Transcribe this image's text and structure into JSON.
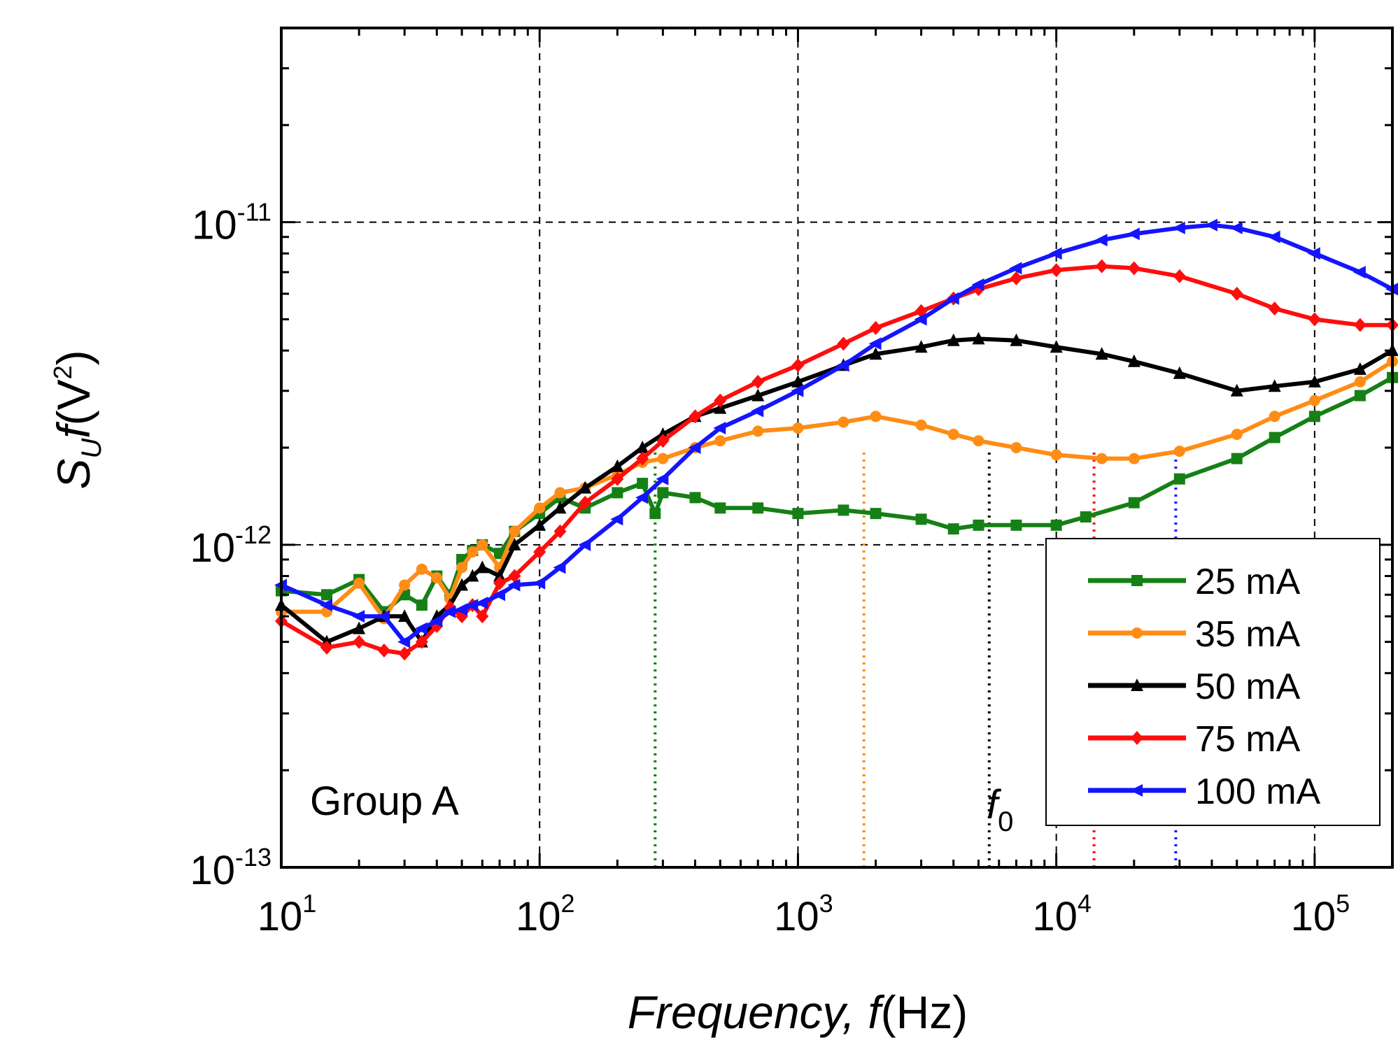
{
  "chart_data": {
    "type": "line",
    "xscale": "log",
    "yscale": "log",
    "xlim": [
      10,
      200000
    ],
    "ylim": [
      1e-13,
      4e-11
    ],
    "grid": true,
    "legend_position": "bottom-right",
    "xlabel": {
      "prefix": "Frequency, ",
      "var": "f",
      "unit": "(Hz)"
    },
    "ylabel": {
      "S": "S",
      "sub": "U",
      "var": "f",
      "open": "(V",
      "sup": "2",
      "close": ")"
    },
    "x_ticks": [
      {
        "base": "10",
        "exp": "1",
        "value": 10
      },
      {
        "base": "10",
        "exp": "2",
        "value": 100
      },
      {
        "base": "10",
        "exp": "3",
        "value": 1000
      },
      {
        "base": "10",
        "exp": "4",
        "value": 10000
      },
      {
        "base": "10",
        "exp": "5",
        "value": 100000
      }
    ],
    "y_ticks": [
      {
        "base": "10",
        "exp": "-13",
        "value": 1e-13
      },
      {
        "base": "10",
        "exp": "-12",
        "value": 1e-12
      },
      {
        "base": "10",
        "exp": "-11",
        "value": 1e-11
      }
    ],
    "annotations": {
      "group": "Group A",
      "f0_var": "f",
      "f0_sub": "0"
    },
    "series": [
      {
        "name": "25 mA",
        "color": "#158015",
        "marker": "square",
        "f0": 280,
        "x": [
          10,
          15,
          20,
          25,
          30,
          35,
          40,
          45,
          50,
          55,
          60,
          70,
          80,
          100,
          120,
          150,
          200,
          250,
          280,
          300,
          400,
          500,
          700,
          1000,
          1500,
          2000,
          3000,
          4000,
          5000,
          7000,
          10000,
          13000,
          20000,
          30000,
          50000,
          70000,
          100000,
          150000,
          200000
        ],
        "y": [
          7.2e-13,
          7e-13,
          7.8e-13,
          6.2e-13,
          7e-13,
          6.5e-13,
          8e-13,
          7e-13,
          9e-13,
          9.6e-13,
          1e-12,
          9.4e-13,
          1.1e-12,
          1.25e-12,
          1.4e-12,
          1.3e-12,
          1.45e-12,
          1.55e-12,
          1.25e-12,
          1.45e-12,
          1.4e-12,
          1.3e-12,
          1.3e-12,
          1.25e-12,
          1.28e-12,
          1.25e-12,
          1.2e-12,
          1.12e-12,
          1.15e-12,
          1.15e-12,
          1.15e-12,
          1.22e-12,
          1.35e-12,
          1.6e-12,
          1.85e-12,
          2.15e-12,
          2.5e-12,
          2.9e-12,
          3.3e-12
        ]
      },
      {
        "name": "35 mA",
        "color": "#ff8c15",
        "marker": "circle",
        "f0": 1800,
        "x": [
          10,
          15,
          20,
          25,
          30,
          35,
          40,
          45,
          50,
          55,
          60,
          70,
          80,
          100,
          120,
          150,
          200,
          250,
          300,
          400,
          500,
          700,
          1000,
          1500,
          2000,
          3000,
          4000,
          5000,
          7000,
          10000,
          15000,
          20000,
          30000,
          50000,
          70000,
          100000,
          150000,
          200000
        ],
        "y": [
          6.2e-13,
          6.2e-13,
          7.6e-13,
          5.9e-13,
          7.5e-13,
          8.4e-13,
          7.9e-13,
          6.8e-13,
          8.5e-13,
          9.5e-13,
          1e-12,
          8.5e-13,
          1.1e-12,
          1.3e-12,
          1.45e-12,
          1.5e-12,
          1.65e-12,
          1.8e-12,
          1.85e-12,
          2e-12,
          2.1e-12,
          2.25e-12,
          2.3e-12,
          2.4e-12,
          2.5e-12,
          2.35e-12,
          2.2e-12,
          2.1e-12,
          2e-12,
          1.9e-12,
          1.85e-12,
          1.85e-12,
          1.95e-12,
          2.2e-12,
          2.5e-12,
          2.8e-12,
          3.2e-12,
          3.7e-12
        ]
      },
      {
        "name": "50 mA",
        "color": "#000000",
        "marker": "triangle",
        "f0": 5500,
        "x": [
          10,
          15,
          20,
          25,
          30,
          35,
          40,
          45,
          50,
          55,
          60,
          70,
          80,
          100,
          120,
          150,
          200,
          250,
          300,
          400,
          500,
          700,
          1000,
          1500,
          2000,
          3000,
          4000,
          5000,
          7000,
          10000,
          15000,
          20000,
          30000,
          50000,
          70000,
          100000,
          150000,
          200000
        ],
        "y": [
          6.5e-13,
          5e-13,
          5.5e-13,
          6e-13,
          6e-13,
          5e-13,
          6e-13,
          6.5e-13,
          7.5e-13,
          8e-13,
          8.5e-13,
          8e-13,
          1e-12,
          1.15e-12,
          1.3e-12,
          1.5e-12,
          1.75e-12,
          2e-12,
          2.2e-12,
          2.5e-12,
          2.65e-12,
          2.9e-12,
          3.2e-12,
          3.6e-12,
          3.9e-12,
          4.1e-12,
          4.3e-12,
          4.35e-12,
          4.3e-12,
          4.1e-12,
          3.9e-12,
          3.7e-12,
          3.4e-12,
          3e-12,
          3.1e-12,
          3.2e-12,
          3.5e-12,
          4e-12
        ]
      },
      {
        "name": "75 mA",
        "color": "#ff0d0d",
        "marker": "diamond",
        "f0": 14000,
        "x": [
          10,
          15,
          20,
          25,
          30,
          35,
          40,
          45,
          50,
          55,
          60,
          70,
          80,
          100,
          120,
          150,
          200,
          250,
          300,
          400,
          500,
          700,
          1000,
          1500,
          2000,
          3000,
          4000,
          5000,
          7000,
          10000,
          15000,
          20000,
          30000,
          50000,
          70000,
          100000,
          150000,
          200000
        ],
        "y": [
          5.8e-13,
          4.8e-13,
          5e-13,
          4.7e-13,
          4.6e-13,
          5e-13,
          5.6e-13,
          6.4e-13,
          6e-13,
          6.5e-13,
          6e-13,
          7.6e-13,
          8e-13,
          9.5e-13,
          1.1e-12,
          1.35e-12,
          1.6e-12,
          1.85e-12,
          2.1e-12,
          2.5e-12,
          2.8e-12,
          3.2e-12,
          3.6e-12,
          4.2e-12,
          4.7e-12,
          5.3e-12,
          5.8e-12,
          6.2e-12,
          6.7e-12,
          7.1e-12,
          7.3e-12,
          7.2e-12,
          6.8e-12,
          6e-12,
          5.4e-12,
          5e-12,
          4.8e-12,
          4.8e-12
        ]
      },
      {
        "name": "100 mA",
        "color": "#1414ff",
        "marker": "triangle-left",
        "f0": 29000,
        "x": [
          10,
          15,
          20,
          25,
          30,
          35,
          40,
          45,
          50,
          55,
          60,
          70,
          80,
          100,
          120,
          150,
          200,
          250,
          300,
          400,
          500,
          700,
          1000,
          1500,
          2000,
          3000,
          4000,
          5000,
          7000,
          10000,
          15000,
          20000,
          30000,
          40000,
          50000,
          70000,
          100000,
          150000,
          200000
        ],
        "y": [
          7.5e-13,
          6.5e-13,
          6e-13,
          6e-13,
          5e-13,
          5.5e-13,
          5.8e-13,
          6.2e-13,
          6.3e-13,
          6.5e-13,
          6.6e-13,
          7e-13,
          7.5e-13,
          7.6e-13,
          8.5e-13,
          1e-12,
          1.2e-12,
          1.4e-12,
          1.6e-12,
          2e-12,
          2.3e-12,
          2.6e-12,
          3e-12,
          3.6e-12,
          4.2e-12,
          5e-12,
          5.8e-12,
          6.4e-12,
          7.2e-12,
          8e-12,
          8.8e-12,
          9.2e-12,
          9.6e-12,
          9.8e-12,
          9.6e-12,
          9e-12,
          8e-12,
          7e-12,
          6.2e-12
        ]
      }
    ]
  }
}
